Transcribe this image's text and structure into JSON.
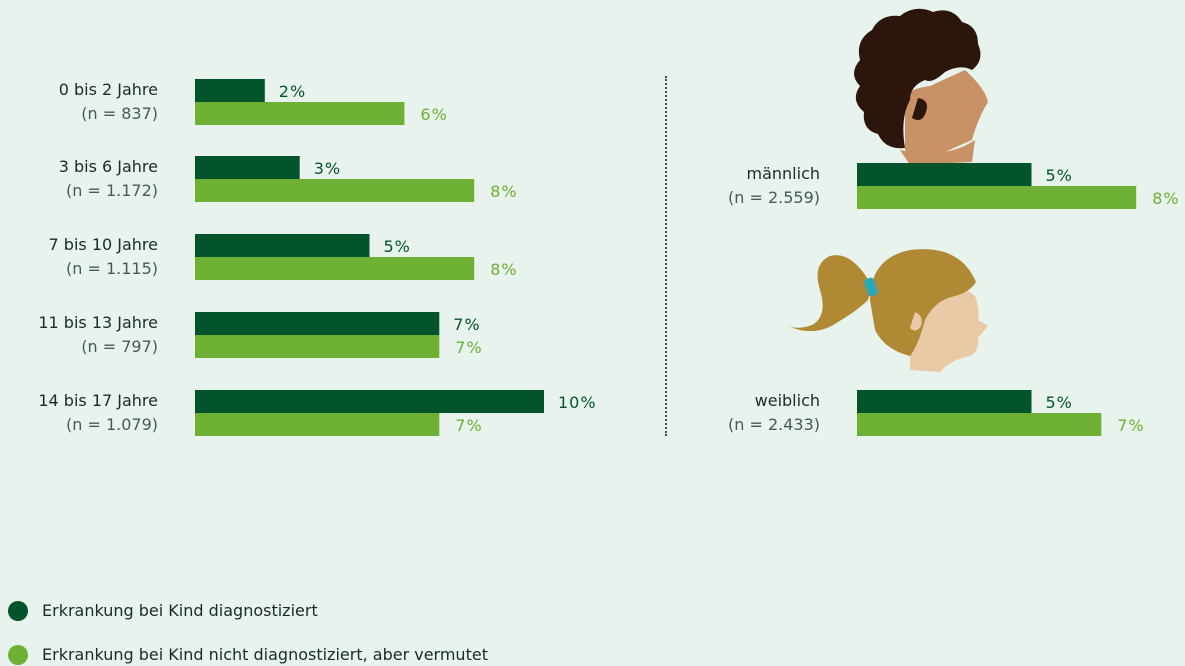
{
  "colors": {
    "diagnosed": "#03542b",
    "suspected": "#6db033",
    "background": "#e8f3ee"
  },
  "chart_data": [
    {
      "type": "bar",
      "orientation": "horizontal",
      "categories": [
        {
          "label": "0 bis 2 Jahre",
          "n": "(n = 837)"
        },
        {
          "label": "3 bis 6 Jahre",
          "n": "(n = 1.172)"
        },
        {
          "label": "7 bis 10 Jahre",
          "n": "(n = 1.115)"
        },
        {
          "label": "11 bis 13 Jahre",
          "n": "(n = 797)"
        },
        {
          "label": "14 bis 17 Jahre",
          "n": "(n = 1.079)"
        }
      ],
      "series": [
        {
          "key": "diagnosed",
          "values": [
            2,
            3,
            5,
            7,
            10
          ],
          "labels": [
            "2%",
            "3%",
            "5%",
            "7%",
            "10%"
          ]
        },
        {
          "key": "suspected",
          "values": [
            6,
            8,
            8,
            7,
            7
          ],
          "labels": [
            "6%",
            "8%",
            "8%",
            "7%",
            "7%"
          ]
        }
      ]
    },
    {
      "type": "bar",
      "orientation": "horizontal",
      "categories": [
        {
          "label": "männlich",
          "n": "(n = 2.559)",
          "icon": "boy-head-icon"
        },
        {
          "label": "weiblich",
          "n": "(n = 2.433)",
          "icon": "girl-head-icon"
        }
      ],
      "series": [
        {
          "key": "diagnosed",
          "values": [
            5,
            5
          ],
          "labels": [
            "5%",
            "5%"
          ]
        },
        {
          "key": "suspected",
          "values": [
            8,
            7
          ],
          "labels": [
            "8%",
            "7%"
          ]
        }
      ]
    }
  ],
  "legend": [
    {
      "key": "diagnosed",
      "label": "Erkrankung bei Kind diagnostiziert"
    },
    {
      "key": "suspected",
      "label": "Erkrankung bei Kind nicht diagnostiziert, aber vermutet"
    }
  ]
}
